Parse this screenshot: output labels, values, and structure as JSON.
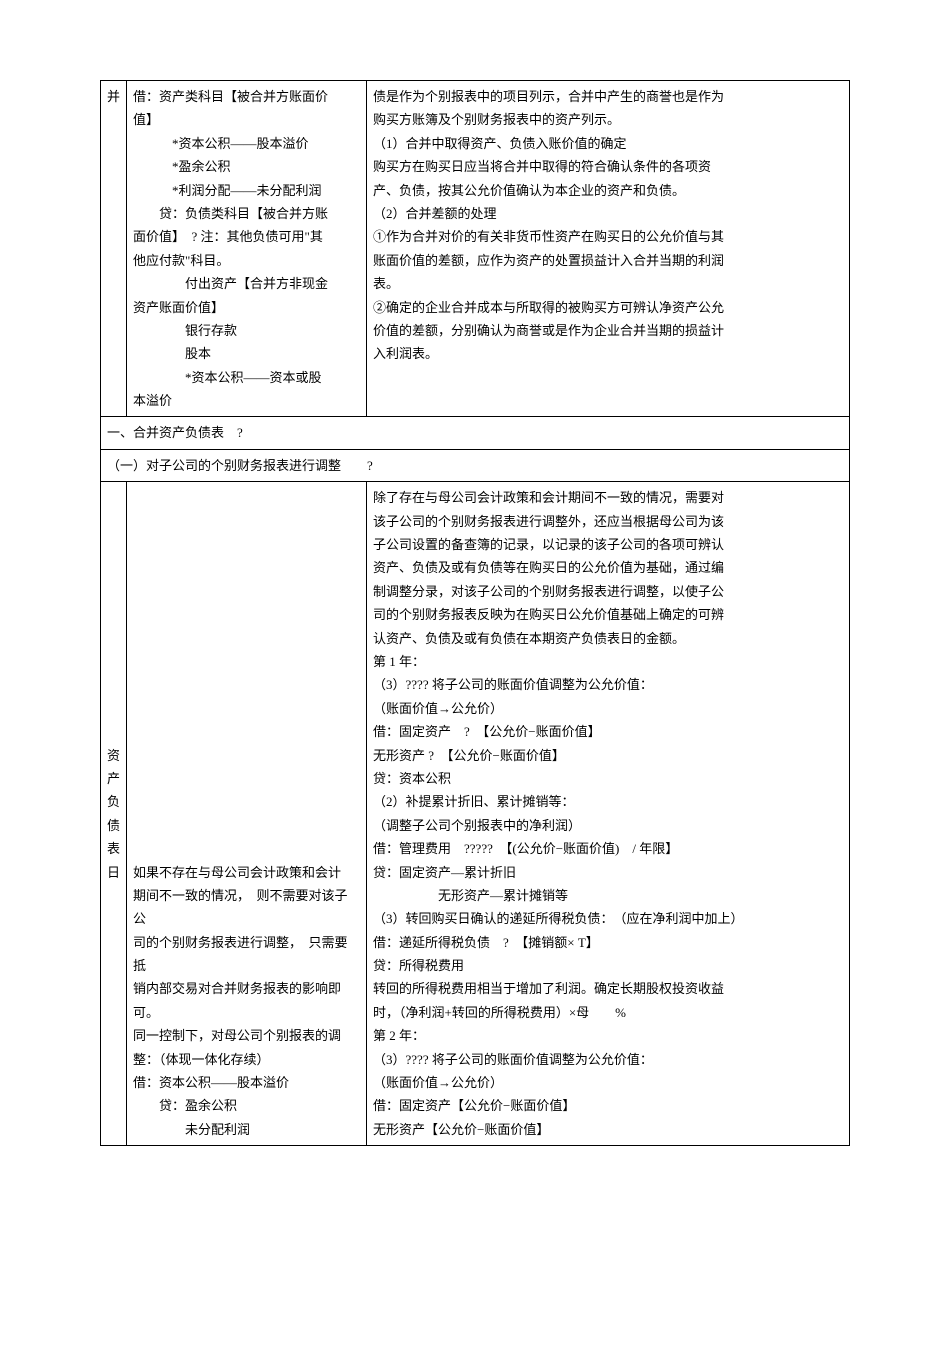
{
  "row1": {
    "col1": "并",
    "col2_lines": [
      "借：资产类科目【被合并方账面价",
      "值】",
      "　　　*资本公积——股本溢价",
      "　　　*盈余公积",
      "　　　*利润分配——未分配利润",
      "　　贷：负债类科目【被合并方账",
      "面价值】　? 注：其他负债可用\"其",
      "他应付款\"科目。",
      "　　　　付出资产【合并方非现金",
      "资产账面价值】",
      "　　　　银行存款",
      "　　　　股本",
      "　　　　*资本公积——资本或股",
      "本溢价"
    ],
    "col3_lines": [
      "债是作为个别报表中的项目列示，合并中产生的商誉也是作为",
      "购买方账簿及个别财务报表中的资产列示。",
      "（1）合并中取得资产、负债入账价值的确定",
      "购买方在购买日应当将合并中取得的符合确认条件的各项资",
      "产、负债，按其公允价值确认为本企业的资产和负债。",
      "（2）合并差额的处理",
      "①作为合并对价的有关非货币性资产在购买日的公允价值与其",
      "账面价值的差额，应作为资产的处置损益计入合并当期的利润",
      "表。",
      "②确定的企业合并成本与所取得的被购买方可辨认净资产公允",
      "价值的差额，分别确认为商誉或是作为企业合并当期的损益计",
      "入利润表。"
    ]
  },
  "row2": {
    "text": "一、合并资产负债表　?"
  },
  "row3": {
    "text": "（一）对子公司的个别财务报表进行调整　　?"
  },
  "row4": {
    "side_label": "资产负债表日",
    "col2_lines": [
      "",
      "",
      "",
      "",
      "",
      "",
      "",
      "",
      "如果不存在与母公司会计政策和会计",
      "期间不一致的情况，　则不需要对该子公",
      "司的个别财务报表进行调整，　只需要抵",
      "销内部交易对合并财务报表的影响即",
      "可。",
      "同一控制下，对母公司个别报表的调",
      "整：（体现一体化存续）",
      "借：资本公积——股本溢价",
      "　　贷：盈余公积",
      "　　　　未分配利润"
    ],
    "col3_lines": [
      "除了存在与母公司会计政策和会计期间不一致的情况，需要对",
      "该子公司的个别财务报表进行调整外，还应当根据母公司为该",
      "子公司设置的备查簿的记录，以记录的该子公司的各项可辨认",
      "资产、负债及或有负债等在购买日的公允价值为基础，通过编",
      "制调整分录，对该子公司的个别财务报表进行调整，以使子公",
      "司的个别财务报表反映为在购买日公允价值基础上确定的可辨",
      "认资产、负债及或有负债在本期资产负债表日的金额。",
      "第 1 年：",
      "（3）???? 将子公司的账面价值调整为公允价值：",
      "（账面价值→公允价）",
      "借：固定资产　?　【公允价−账面价值】",
      "无形资产 ?　【公允价−账面价值】",
      "贷：资本公积",
      "（2）补提累计折旧、累计摊销等：",
      "（调整子公司个别报表中的净利润）",
      "借：管理费用　?????　【(公允价−账面价值)　/ 年限】",
      "贷：固定资产—累计折旧",
      "　　　　　无形资产—累计摊销等",
      "（3）转回购买日确认的递延所得税负债：　（应在净利润中加上）",
      "借：递延所得税负债　?　【摊销额× T】",
      "贷：所得税费用",
      "转回的所得税费用相当于增加了利润。确定长期股权投资收益",
      "时，（净利润+转回的所得税费用）×母　　%",
      "第 2 年：",
      "（3）???? 将子公司的账面价值调整为公允价值：",
      "（账面价值→公允价）",
      "借：固定资产【公允价−账面价值】",
      "无形资产【公允价−账面价值】"
    ]
  }
}
